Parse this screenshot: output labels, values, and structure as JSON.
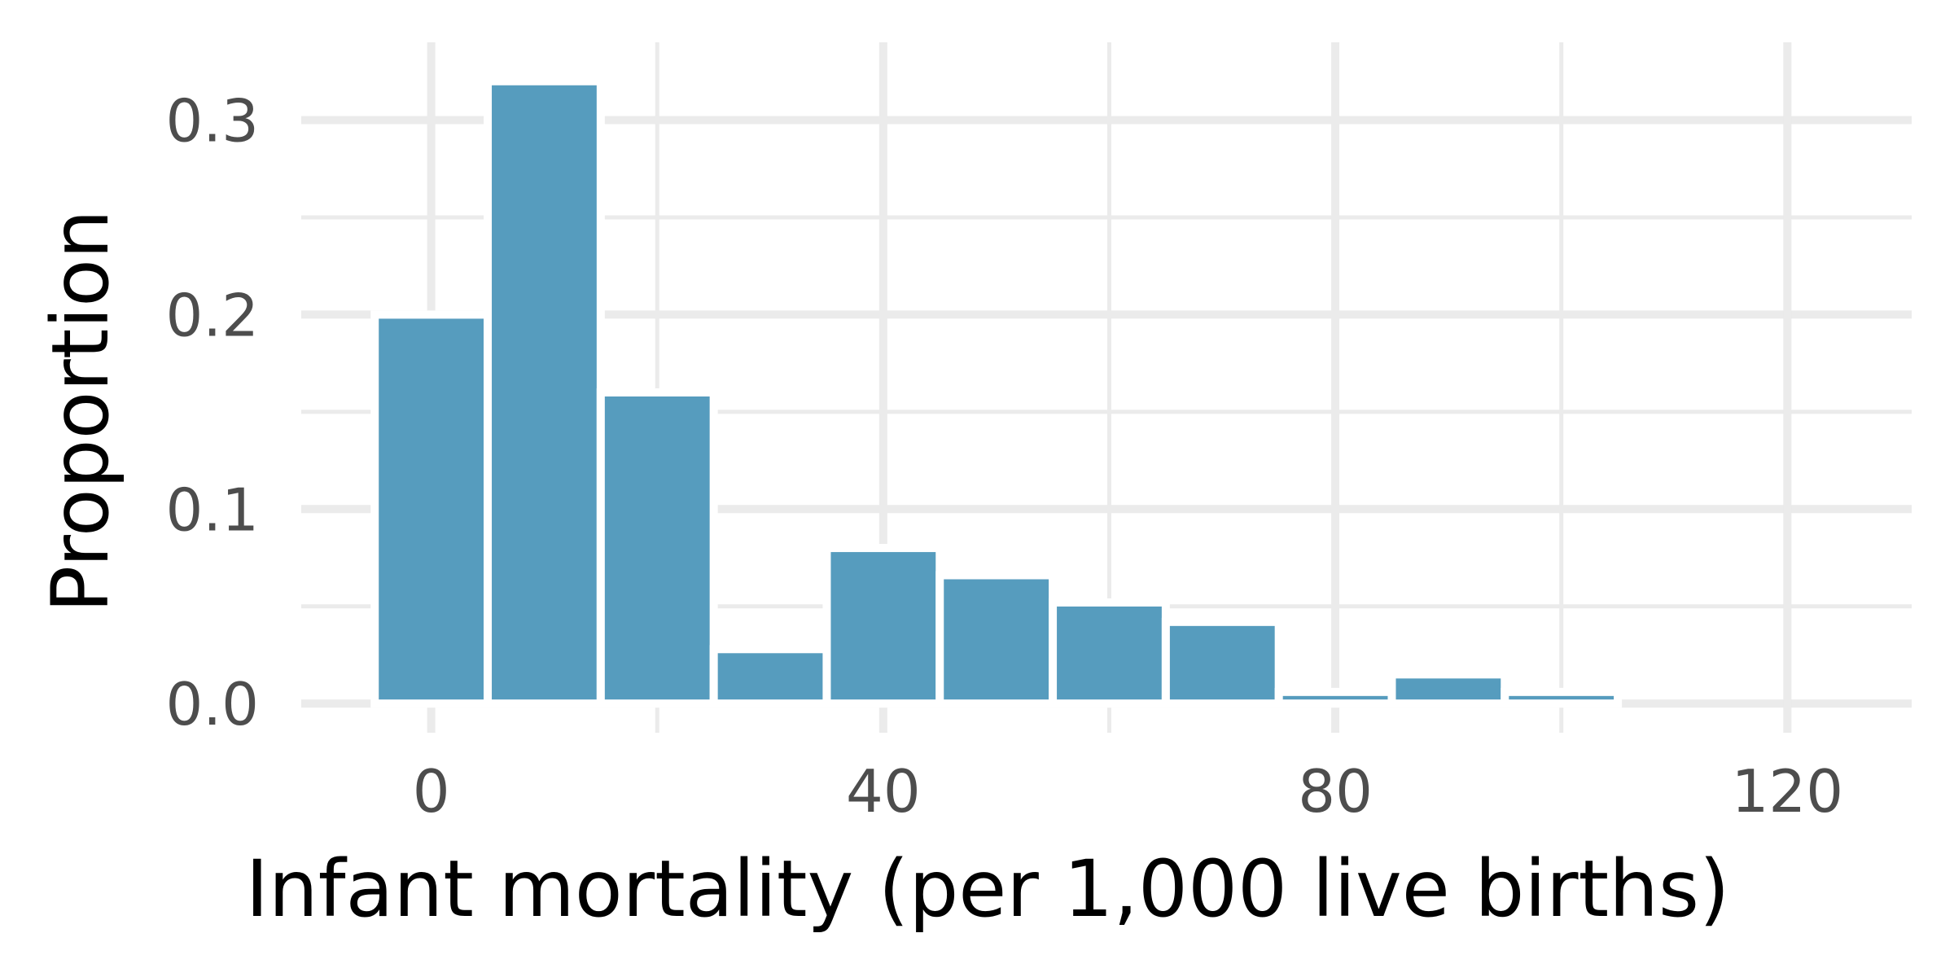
{
  "chart_data": {
    "type": "bar",
    "xlabel": "Infant mortality (per 1,000 live births)",
    "ylabel": "Proportion",
    "bin_width": 10,
    "bins": [
      {
        "x": 0,
        "value": 0.2
      },
      {
        "x": 10,
        "value": 0.32
      },
      {
        "x": 20,
        "value": 0.16
      },
      {
        "x": 30,
        "value": 0.028
      },
      {
        "x": 40,
        "value": 0.08
      },
      {
        "x": 50,
        "value": 0.066
      },
      {
        "x": 60,
        "value": 0.052
      },
      {
        "x": 70,
        "value": 0.042
      },
      {
        "x": 80,
        "value": 0.006
      },
      {
        "x": 90,
        "value": 0.015
      },
      {
        "x": 100,
        "value": 0.006
      }
    ],
    "xlim": [
      -11.5,
      131
    ],
    "ylim": [
      -0.015,
      0.34
    ],
    "x_ticks": [
      "0",
      "40",
      "80",
      "120"
    ],
    "x_tick_values": [
      0,
      40,
      80,
      120
    ],
    "y_ticks": [
      "0.0",
      "0.1",
      "0.2",
      "0.3"
    ],
    "y_tick_values": [
      0,
      0.1,
      0.2,
      0.3
    ],
    "x_minor": [
      20,
      60,
      100
    ],
    "y_minor": [
      0.05,
      0.15,
      0.25
    ],
    "grid": true,
    "bar_color": "#569cbe",
    "grid_color": "#ebebeb"
  }
}
